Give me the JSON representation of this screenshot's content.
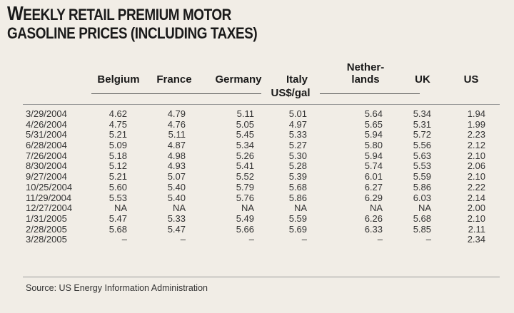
{
  "title": {
    "first_letter": "W",
    "line1_rest": "eekly retail premium motor",
    "line2": "gasoline prices (including taxes)"
  },
  "columns": [
    "Belgium",
    "France",
    "Germany",
    "Italy",
    "Nether-",
    "lands",
    "UK",
    "US"
  ],
  "unit": "US$/gal",
  "rows": [
    {
      "date": "3/29/2004",
      "values": [
        "4.62",
        "4.79",
        "5.11",
        "5.01",
        "5.64",
        "5.34",
        "1.94"
      ]
    },
    {
      "date": "4/26/2004",
      "values": [
        "4.75",
        "4.76",
        "5.05",
        "4.97",
        "5.65",
        "5.31",
        "1.99"
      ]
    },
    {
      "date": "5/31/2004",
      "values": [
        "5.21",
        "5.11",
        "5.45",
        "5.33",
        "5.94",
        "5.72",
        "2.23"
      ]
    },
    {
      "date": "6/28/2004",
      "values": [
        "5.09",
        "4.87",
        "5.34",
        "5.27",
        "5.80",
        "5.56",
        "2.12"
      ]
    },
    {
      "date": "7/26/2004",
      "values": [
        "5.18",
        "4.98",
        "5.26",
        "5.30",
        "5.94",
        "5.63",
        "2.10"
      ]
    },
    {
      "date": "8/30/2004",
      "values": [
        "5.12",
        "4.93",
        "5.41",
        "5.28",
        "5.74",
        "5.53",
        "2.06"
      ]
    },
    {
      "date": "9/27/2004",
      "values": [
        "5.21",
        "5.07",
        "5.52",
        "5.39",
        "6.01",
        "5.59",
        "2.10"
      ]
    },
    {
      "date": "10/25/2004",
      "values": [
        "5.60",
        "5.40",
        "5.79",
        "5.68",
        "6.27",
        "5.86",
        "2.22"
      ]
    },
    {
      "date": "11/29/2004",
      "values": [
        "5.53",
        "5.40",
        "5.76",
        "5.86",
        "6.29",
        "6.03",
        "2.14"
      ]
    },
    {
      "date": "12/27/2004",
      "values": [
        "NA",
        "NA",
        "NA",
        "NA",
        "NA",
        "NA",
        "2.00"
      ]
    },
    {
      "date": "1/31/2005",
      "values": [
        "5.47",
        "5.33",
        "5.49",
        "5.59",
        "6.26",
        "5.68",
        "2.10"
      ]
    },
    {
      "date": "2/28/2005",
      "values": [
        "5.68",
        "5.47",
        "5.66",
        "5.69",
        "6.33",
        "5.85",
        "2.11"
      ]
    },
    {
      "date": "3/28/2005",
      "values": [
        "–",
        "–",
        "–",
        "–",
        "–",
        "–",
        "2.34"
      ]
    }
  ],
  "source": "Source: US Energy Information Administration"
}
